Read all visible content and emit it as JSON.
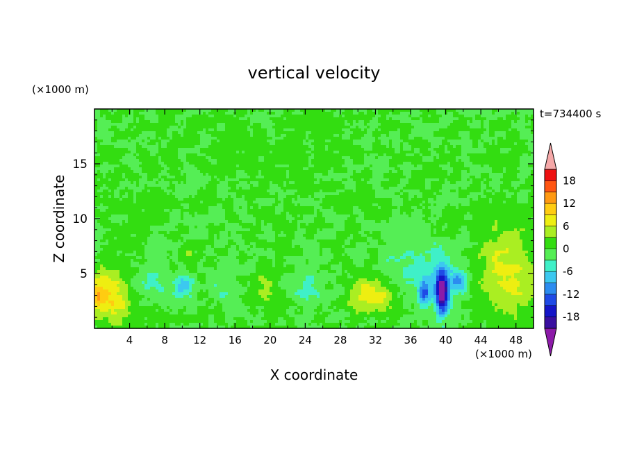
{
  "chart_data": {
    "type": "heatmap",
    "title": "vertical velocity",
    "xlabel": "X coordinate",
    "ylabel": "Z coordinate",
    "x_unit": "(×1000 m)",
    "y_unit": "(×1000 m)",
    "time_label": "t=734400 s",
    "xlim": [
      0,
      50
    ],
    "ylim": [
      0,
      20
    ],
    "x_ticks": [
      4,
      8,
      12,
      16,
      20,
      24,
      28,
      32,
      36,
      40,
      44,
      48
    ],
    "y_ticks": [
      5,
      10,
      15
    ],
    "colorbar": {
      "levels": [
        -21,
        -18,
        -15,
        -12,
        -9,
        -6,
        -3,
        0,
        3,
        6,
        9,
        12,
        15,
        18,
        21
      ],
      "tick_labels": [
        "18",
        "12",
        "6",
        "0",
        "-6",
        "-12",
        "-18"
      ],
      "colors": [
        "#8c1aa8",
        "#3a0fa0",
        "#1515c8",
        "#1f4ae6",
        "#2c8cf0",
        "#3cc8f0",
        "#3ff0c8",
        "#55ee55",
        "#33dd11",
        "#aaee22",
        "#eeee11",
        "#ffcc11",
        "#ff9911",
        "#ff5511",
        "#ee1111",
        "#f5a8a8"
      ],
      "extend": "both"
    },
    "features": [
      {
        "x": 1.5,
        "z": 3.0,
        "sx": 3.0,
        "sz": 2.2,
        "w": 9
      },
      {
        "x": 0.3,
        "z": 3.0,
        "sx": 0.8,
        "sz": 1.0,
        "w": 5
      },
      {
        "x": 31.0,
        "z": 3.0,
        "sx": 2.0,
        "sz": 1.6,
        "w": 7
      },
      {
        "x": 33.0,
        "z": 2.6,
        "sx": 1.2,
        "sz": 1.2,
        "w": 4
      },
      {
        "x": 47.0,
        "z": 5.0,
        "sx": 3.2,
        "sz": 3.8,
        "w": 7
      },
      {
        "x": 19.5,
        "z": 3.5,
        "sx": 1.4,
        "sz": 1.5,
        "w": 4
      },
      {
        "x": 10.8,
        "z": 6.8,
        "sx": 0.7,
        "sz": 0.9,
        "w": 4
      },
      {
        "x": 39.6,
        "z": 3.2,
        "sx": 0.7,
        "sz": 1.9,
        "w": -22
      },
      {
        "x": 37.5,
        "z": 3.2,
        "sx": 0.7,
        "sz": 1.2,
        "w": -10
      },
      {
        "x": 41.5,
        "z": 4.2,
        "sx": 0.8,
        "sz": 0.9,
        "w": -8
      },
      {
        "x": 38.5,
        "z": 4.8,
        "sx": 3.5,
        "sz": 2.5,
        "w": -5
      },
      {
        "x": 6.0,
        "z": 4.5,
        "sx": 2.5,
        "sz": 1.8,
        "w": -4
      },
      {
        "x": 10.0,
        "z": 3.8,
        "sx": 1.2,
        "sz": 1.2,
        "w": -7
      },
      {
        "x": 24.5,
        "z": 3.5,
        "sx": 2.2,
        "sz": 1.8,
        "w": -3
      },
      {
        "x": 15.0,
        "z": 3.5,
        "sx": 2.0,
        "sz": 1.5,
        "w": -3
      },
      {
        "x": 35.0,
        "z": 8.0,
        "sx": 3.0,
        "sz": 2.5,
        "w": -2
      },
      {
        "x": 20.0,
        "z": 17.0,
        "sx": 10.0,
        "sz": 3.5,
        "w": 0.8
      },
      {
        "x": 5.0,
        "z": 10.0,
        "sx": 3.0,
        "sz": 4.0,
        "w": 0.8
      }
    ]
  }
}
